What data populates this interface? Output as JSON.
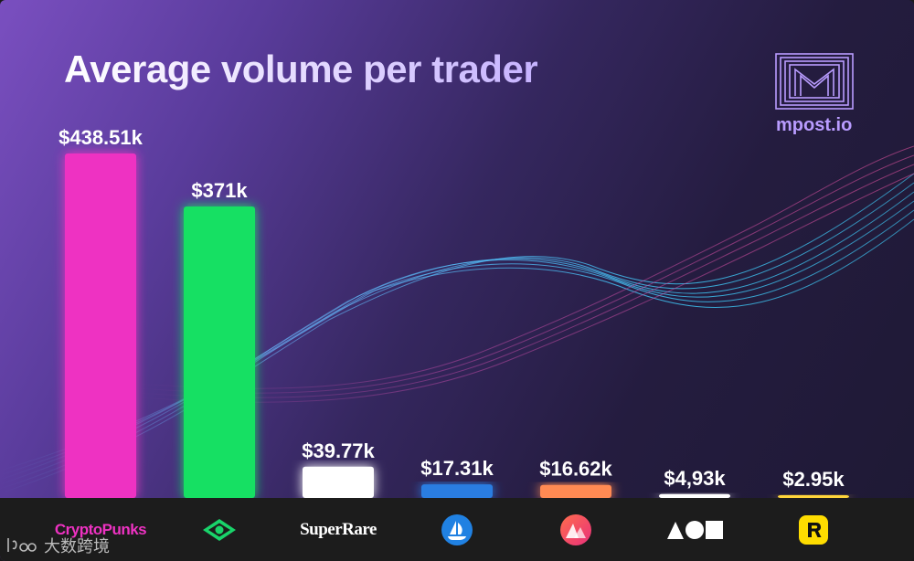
{
  "title": "Average volume per trader",
  "brand": {
    "name": "mpost.io"
  },
  "watermark": "大数跨境",
  "footer": {
    "logos": [
      {
        "label": "CryptoPunks",
        "icon": "cryptopunks-wordmark",
        "color": "#ee32c2"
      },
      {
        "label": "",
        "icon": "eye-diamond-icon",
        "color": "#19d36a"
      },
      {
        "label": "SuperRare",
        "icon": "superrare-wordmark",
        "color": "#ffffff"
      },
      {
        "label": "",
        "icon": "opensea-ship-icon",
        "color": "#2081e2"
      },
      {
        "label": "",
        "icon": "mountains-circle-icon",
        "color": "#ff5c5c"
      },
      {
        "label": "",
        "icon": "triangle-circle-square-icon",
        "color": "#ffffff"
      },
      {
        "label": "",
        "icon": "rarible-r-icon",
        "color": "#fedc00"
      }
    ]
  },
  "chart_data": {
    "type": "bar",
    "title": "Average volume per trader",
    "categories": [
      "CryptoPunks",
      "",
      "SuperRare",
      "",
      "",
      "",
      ""
    ],
    "values": [
      438.51,
      371,
      39.77,
      17.31,
      16.62,
      4.93,
      2.95
    ],
    "value_labels": [
      "$438.51k",
      "$371k",
      "$39.77k",
      "$17.31k",
      "$16.62k",
      "$4,93k",
      "$2.95k"
    ],
    "colors": [
      "#ee32c2",
      "#12e064",
      "#ffffff",
      "#2a7de1",
      "#ff8a52",
      "#ffffff",
      "#ffd43a"
    ],
    "ylim": [
      0,
      438.51
    ],
    "xlabel": "",
    "ylabel": "",
    "grid": false,
    "legend": "none"
  }
}
